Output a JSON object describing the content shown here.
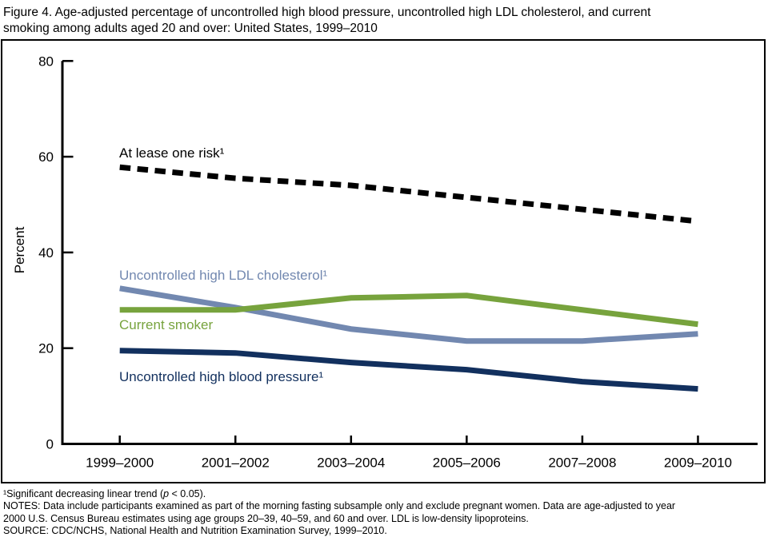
{
  "figure": {
    "title_line1": "Figure 4. Age-adjusted percentage of uncontrolled high blood pressure, uncontrolled high LDL cholesterol, and current",
    "title_line2": "smoking among adults aged 20 and over: United States, 1999–2010"
  },
  "chart_data": {
    "type": "line",
    "categories": [
      "1999–2000",
      "2001–2002",
      "2003–2004",
      "2005–2006",
      "2007–2008",
      "2009–2010"
    ],
    "series": [
      {
        "name": "At lease one risk",
        "label": "At lease one risk¹",
        "values": [
          57.8,
          55.5,
          54,
          51.5,
          49,
          46.5
        ],
        "color": "#000000",
        "dashed": true
      },
      {
        "name": "Uncontrolled high LDL cholesterol",
        "label": "Uncontrolled high LDL cholesterol¹",
        "values": [
          32.5,
          28.5,
          24,
          21.5,
          21.5,
          23
        ],
        "color": "#7288b0",
        "dashed": false
      },
      {
        "name": "Current smoker",
        "label": "Current smoker",
        "values": [
          28,
          28,
          30.5,
          31,
          28,
          25
        ],
        "color": "#77a33d",
        "dashed": false
      },
      {
        "name": "Uncontrolled high blood pressure",
        "label": "Uncontrolled high blood pressure¹",
        "values": [
          19.5,
          19,
          17,
          15.5,
          13,
          11.5
        ],
        "color": "#12305e",
        "dashed": false
      }
    ],
    "title": "",
    "xlabel": "",
    "ylabel": "Percent",
    "yticks": [
      0,
      20,
      40,
      60,
      80
    ],
    "ylim": [
      0,
      80
    ],
    "grid": false,
    "legend_position": "inline-labels"
  },
  "footnotes": {
    "fn1_pre": "¹Significant decreasing linear trend (",
    "fn1_italic": "p",
    "fn1_post": " < 0.05).",
    "notes_line1": "NOTES: Data include participants examined as part of the morning fasting subsample only and exclude pregnant women. Data are age-adjusted to year",
    "notes_line2": "2000 U.S. Census Bureau estimates using age groups 20–39, 40–59, and 60 and over. LDL is low-density lipoproteins.",
    "source": "SOURCE: CDC/NCHS, National Health and Nutrition Examination Survey, 1999–2010."
  }
}
